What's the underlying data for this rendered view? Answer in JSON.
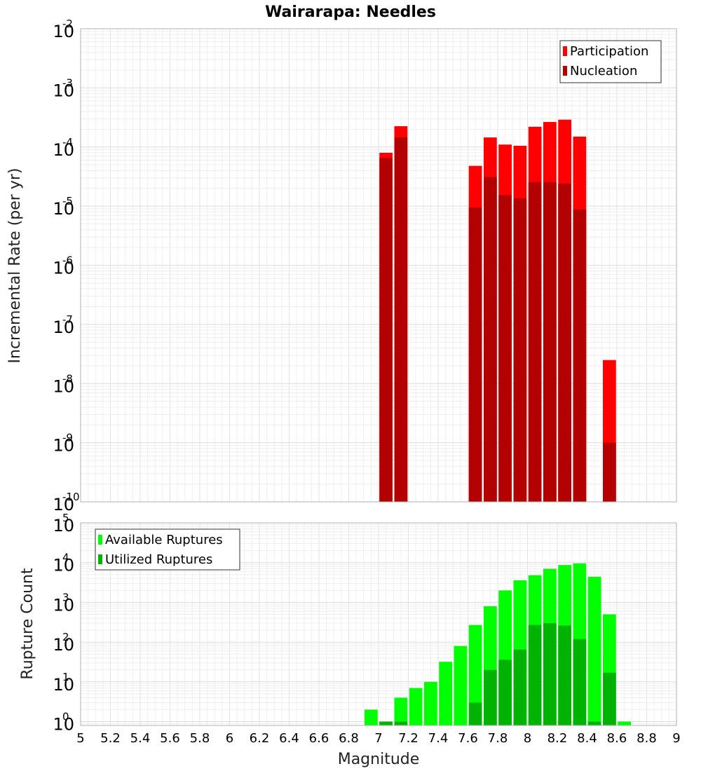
{
  "chart_data": [
    {
      "type": "bar",
      "title": "Wairarapa: Needles",
      "ylabel": "Incremental Rate (per yr)",
      "xlabel": "",
      "yscale": "log",
      "ylim": [
        1e-10,
        0.01
      ],
      "xlim": [
        5,
        9
      ],
      "ytick_exponents": [
        "-10",
        "-9",
        "-8",
        "-7",
        "-6",
        "-5",
        "-4",
        "-3",
        "-2"
      ],
      "grid": true,
      "legend_position": "top-right",
      "x": [
        7.05,
        7.15,
        7.65,
        7.75,
        7.85,
        7.95,
        8.05,
        8.15,
        8.25,
        8.35,
        8.55
      ],
      "series": [
        {
          "name": "Participation",
          "color": "#ff0000",
          "values": [
            8e-05,
            0.000225,
            4.8e-05,
            0.000145,
            0.00011,
            0.000105,
            0.00022,
            0.000265,
            0.00029,
            0.00015,
            2.5e-08
          ]
        },
        {
          "name": "Nucleation",
          "color": "#b30000",
          "values": [
            6.5e-05,
            0.000145,
            9.5e-06,
            3.1e-05,
            1.55e-05,
            1.35e-05,
            2.55e-05,
            2.55e-05,
            2.4e-05,
            8.8e-06,
            1e-09
          ]
        }
      ]
    },
    {
      "type": "bar",
      "title": "",
      "ylabel": "Rupture Count",
      "xlabel": "Magnitude",
      "yscale": "log",
      "ylim": [
        0.8,
        100000.0
      ],
      "xlim": [
        5,
        9
      ],
      "xticks": [
        "5",
        "5.2",
        "5.4",
        "5.6",
        "5.8",
        "6",
        "6.2",
        "6.4",
        "6.6",
        "6.8",
        "7",
        "7.2",
        "7.4",
        "7.6",
        "7.8",
        "8",
        "8.2",
        "8.4",
        "8.6",
        "8.8",
        "9"
      ],
      "ytick_exponents": [
        "0",
        "1",
        "2",
        "3",
        "4",
        "5"
      ],
      "grid": true,
      "legend_position": "top-left",
      "x": [
        6.95,
        7.05,
        7.15,
        7.25,
        7.35,
        7.45,
        7.55,
        7.65,
        7.75,
        7.85,
        7.95,
        8.05,
        8.15,
        8.25,
        8.35,
        8.45,
        8.55,
        8.65
      ],
      "series": [
        {
          "name": "Available Ruptures",
          "color": "#00ff00",
          "values": [
            2,
            1,
            4,
            7,
            10,
            32,
            80,
            270,
            800,
            2000,
            3600,
            4800,
            7000,
            8700,
            9600,
            4400,
            500,
            1
          ]
        },
        {
          "name": "Utilized Ruptures",
          "color": "#00b300",
          "values": [
            null,
            1,
            1,
            null,
            null,
            null,
            null,
            3,
            20,
            36,
            65,
            270,
            300,
            260,
            120,
            1,
            17,
            null
          ]
        }
      ]
    }
  ]
}
